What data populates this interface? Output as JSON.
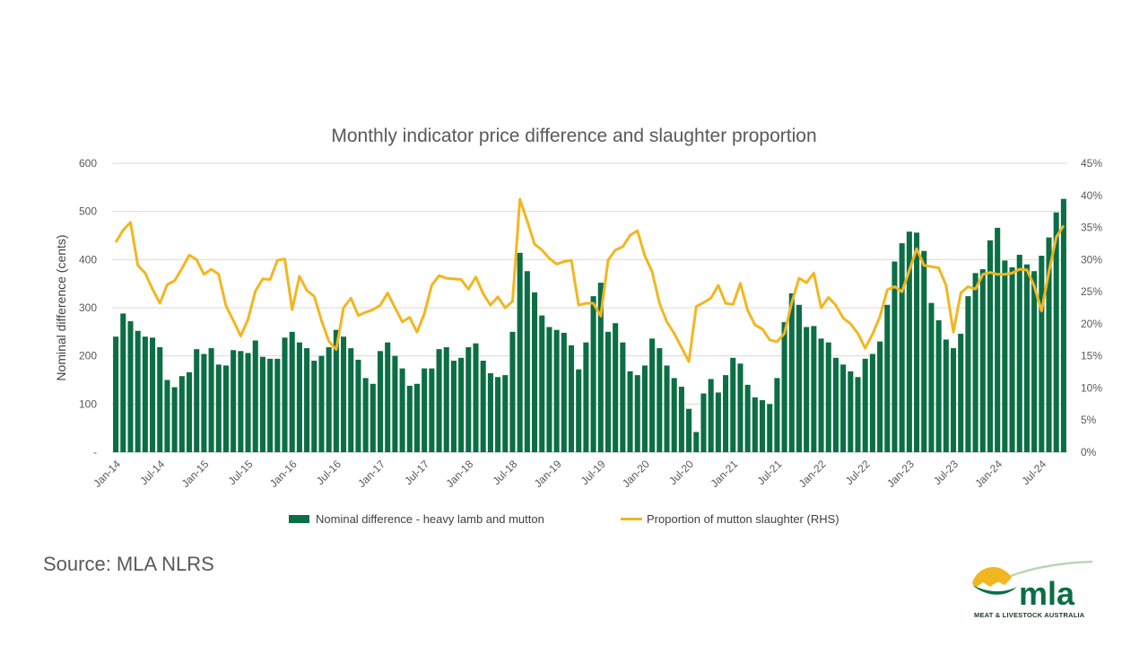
{
  "source": "Source: MLA NLRS",
  "logo": {
    "word": "mla",
    "subtitle": "MEAT & LIVESTOCK AUSTRALIA"
  },
  "colors": {
    "bar": "#0b6e45",
    "line": "#f2b620",
    "grid": "#d9d9d9",
    "text": "#595959"
  },
  "chart_data": {
    "type": "bar",
    "title": "Monthly indicator price difference and  slaughter proportion",
    "ylabel": "Nominal difference (cents)",
    "ylim": [
      0,
      600
    ],
    "y_ticks": [
      "-",
      "100",
      "200",
      "300",
      "400",
      "500",
      "600"
    ],
    "y2lim": [
      0,
      45
    ],
    "y2_ticks": [
      "0%",
      "5%",
      "10%",
      "15%",
      "20%",
      "25%",
      "30%",
      "35%",
      "40%",
      "45%"
    ],
    "x_tick_labels": [
      "Jan-14",
      "Jul-14",
      "Jan-15",
      "Jul-15",
      "Jan-16",
      "Jul-16",
      "Jan-17",
      "Jul-17",
      "Jan-18",
      "Jul-18",
      "Jan-19",
      "Jul-19",
      "Jan-20",
      "Jul-20",
      "Jan-21",
      "Jul-21",
      "Jan-22",
      "Jul-22",
      "Jan-23",
      "Jul-23",
      "Jan-24",
      "Jul-24"
    ],
    "grid": true,
    "legend_position": "bottom",
    "series": [
      {
        "name": "Nominal difference - heavy lamb and mutton",
        "type": "bar",
        "axis": "left",
        "values": [
          240,
          288,
          272,
          252,
          240,
          238,
          218,
          150,
          135,
          158,
          166,
          214,
          204,
          216,
          182,
          180,
          212,
          210,
          206,
          232,
          198,
          194,
          194,
          238,
          250,
          228,
          216,
          190,
          200,
          218,
          254,
          240,
          216,
          192,
          154,
          142,
          210,
          228,
          200,
          174,
          138,
          142,
          174,
          174,
          214,
          218,
          190,
          196,
          218,
          226,
          190,
          164,
          156,
          160,
          250,
          414,
          376,
          332,
          284,
          260,
          254,
          248,
          222,
          172,
          228,
          324,
          352,
          250,
          268,
          228,
          168,
          160,
          180,
          236,
          216,
          180,
          154,
          136,
          90,
          42,
          122,
          152,
          124,
          160,
          196,
          184,
          140,
          114,
          108,
          100,
          154,
          270,
          330,
          306,
          260,
          262,
          236,
          228,
          196,
          182,
          168,
          156,
          194,
          204,
          230,
          306,
          396,
          434,
          458,
          456,
          418,
          310,
          274,
          234,
          216,
          246,
          324,
          372,
          380,
          440,
          466,
          398,
          384,
          410,
          390,
          376,
          408,
          446,
          498,
          526
        ]
      },
      {
        "name": "Proportion of mutton slaughter (RHS)",
        "type": "line",
        "axis": "right",
        "values": [
          32.7,
          34.6,
          35.8,
          29.1,
          27.9,
          25.4,
          23.2,
          26.1,
          26.7,
          28.6,
          30.7,
          30.0,
          27.7,
          28.5,
          27.7,
          22.8,
          20.5,
          18.1,
          20.7,
          25.1,
          27.0,
          26.9,
          29.9,
          30.1,
          22.2,
          27.4,
          25.2,
          24.3,
          20.5,
          17.3,
          16.0,
          22.5,
          24.0,
          21.3,
          21.8,
          22.2,
          22.9,
          24.8,
          22.5,
          20.3,
          21.0,
          18.7,
          21.6,
          26.0,
          27.5,
          27.1,
          27.0,
          26.9,
          25.4,
          27.3,
          24.7,
          22.9,
          24.2,
          22.5,
          23.5,
          39.4,
          36.0,
          32.4,
          31.5,
          30.2,
          29.3,
          29.7,
          29.9,
          22.9,
          23.2,
          23.2,
          21.2,
          29.9,
          31.5,
          32.0,
          33.8,
          34.5,
          30.6,
          28.1,
          23.2,
          20.3,
          18.5,
          16.3,
          14.1,
          22.7,
          23.3,
          24.0,
          26.0,
          23.2,
          23.0,
          26.3,
          22.1,
          19.8,
          19.2,
          17.5,
          17.2,
          18.5,
          23.3,
          27.1,
          26.4,
          27.9,
          22.5,
          24.1,
          22.9,
          20.9,
          20.0,
          18.5,
          16.2,
          18.4,
          21.1,
          25.3,
          25.8,
          25.0,
          28.3,
          31.7,
          29.1,
          28.9,
          28.7,
          26.0,
          18.7,
          24.8,
          25.8,
          25.4,
          27.7,
          28.0,
          27.7,
          27.7,
          27.9,
          28.5,
          28.4,
          25.9,
          22.0,
          28.1,
          33.5,
          35.3
        ]
      }
    ]
  }
}
